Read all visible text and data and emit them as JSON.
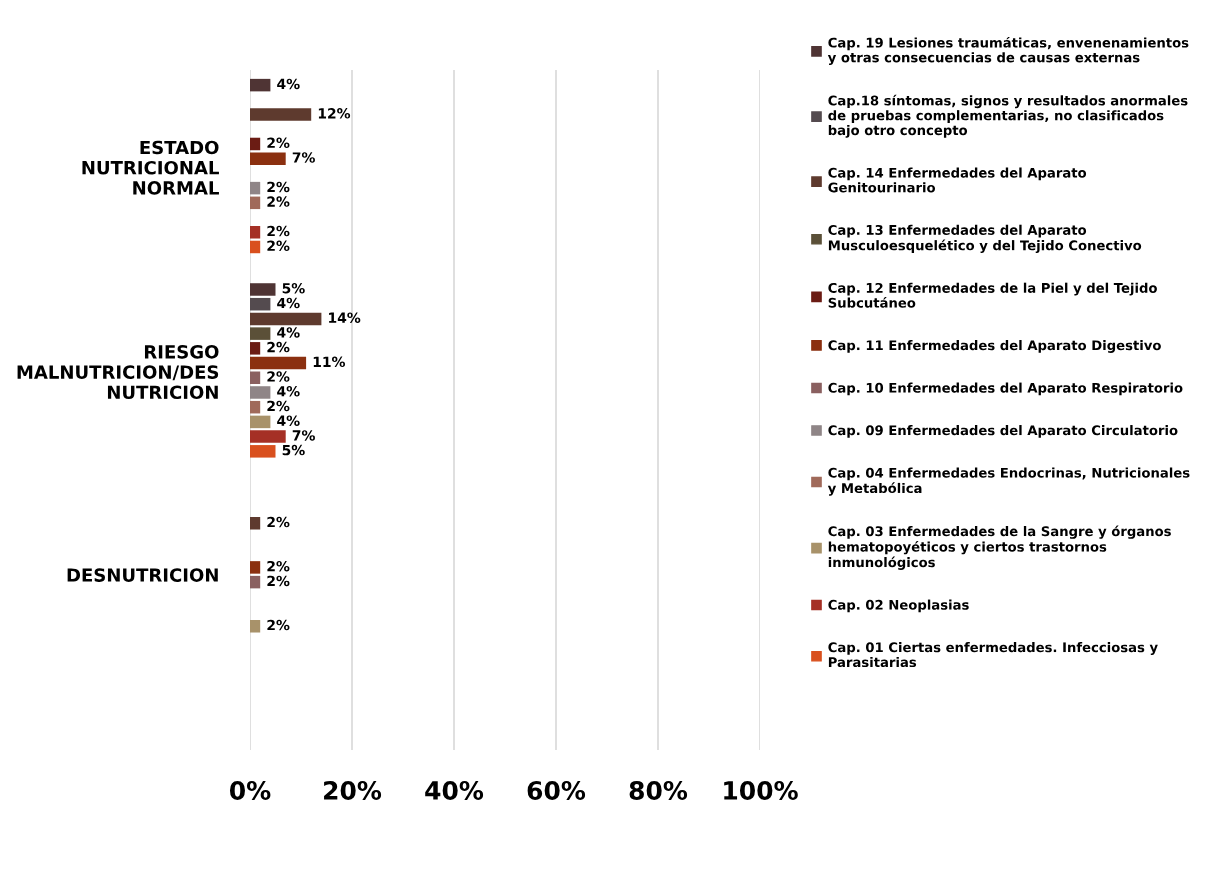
{
  "chart_data": {
    "type": "bar",
    "orientation": "horizontal",
    "categories": [
      "ESTADO\nNUTRICIONAL\nNORMAL",
      "RIESGO\nMALNUTRICION/DES\nNUTRICION",
      "DESNUTRICION"
    ],
    "xlim": [
      0,
      100
    ],
    "xticks": [
      {
        "value": 0,
        "label": "0%"
      },
      {
        "value": 20,
        "label": "20%"
      },
      {
        "value": 40,
        "label": "40%"
      },
      {
        "value": 60,
        "label": "60%"
      },
      {
        "value": 80,
        "label": "80%"
      },
      {
        "value": 100,
        "label": "100%"
      }
    ],
    "grid": "x",
    "legend": "right",
    "series": [
      {
        "name": "Cap. 19 Lesiones traumáticas, envenenamientos\ny otras consecuencias de causas externas",
        "color": "#4f3434",
        "values": [
          4,
          5,
          null
        ],
        "value_labels": [
          "4%",
          "5%",
          null
        ]
      },
      {
        "name": "Cap.18 síntomas, signos y resultados anormales\nde pruebas complementarias, no clasificados\nbajo otro concepto",
        "color": "#544b4f",
        "values": [
          null,
          4,
          null
        ],
        "value_labels": [
          null,
          "4%",
          null
        ]
      },
      {
        "name": "Cap. 14 Enfermedades del Aparato\nGenitourinario",
        "color": "#5e3a2e",
        "values": [
          12,
          14,
          2
        ],
        "value_labels": [
          "12%",
          "14%",
          "2%"
        ]
      },
      {
        "name": "Cap. 13 Enfermedades del Aparato\nMusculoesquelético y del Tejido Conectivo",
        "color": "#5b5038",
        "values": [
          null,
          4,
          null
        ],
        "value_labels": [
          null,
          "4%",
          null
        ]
      },
      {
        "name": "Cap. 12 Enfermedades de la Piel y del Tejido\nSubcutáneo",
        "color": "#6b1c14",
        "values": [
          2,
          2,
          null
        ],
        "value_labels": [
          "2%",
          "2%",
          null
        ]
      },
      {
        "name": "Cap. 11 Enfermedades del Aparato Digestivo",
        "color": "#8b3010",
        "values": [
          7,
          11,
          2
        ],
        "value_labels": [
          "7%",
          "11%",
          "2%"
        ]
      },
      {
        "name": "Cap. 10 Enfermedades del Aparato Respiratorio",
        "color": "#8a6060",
        "values": [
          null,
          2,
          2
        ],
        "value_labels": [
          null,
          "2%",
          "2%"
        ]
      },
      {
        "name": "Cap. 09 Enfermedades del Aparato Circulatorio",
        "color": "#8f8587",
        "values": [
          2,
          4,
          null
        ],
        "value_labels": [
          "2%",
          "4%",
          null
        ]
      },
      {
        "name": "Cap. 04 Enfermedades Endocrinas, Nutricionales\ny Metabólica",
        "color": "#a06a5a",
        "values": [
          2,
          2,
          null
        ],
        "value_labels": [
          "2%",
          "2%",
          null
        ]
      },
      {
        "name": "Cap. 03 Enfermedades de la Sangre y órganos\nhematopoyéticos y ciertos trastornos\ninmunológicos",
        "color": "#a8926a",
        "values": [
          null,
          4,
          2
        ],
        "value_labels": [
          null,
          "4%",
          "2%"
        ]
      },
      {
        "name": "Cap. 02 Neoplasias",
        "color": "#a53025",
        "values": [
          2,
          7,
          null
        ],
        "value_labels": [
          "2%",
          "7%",
          null
        ]
      },
      {
        "name": "Cap. 01 Ciertas enfermedades. Infecciosas y\nParasitarias",
        "color": "#d9501e",
        "values": [
          2,
          5,
          null
        ],
        "value_labels": [
          "2%",
          "5%",
          null
        ]
      }
    ]
  }
}
